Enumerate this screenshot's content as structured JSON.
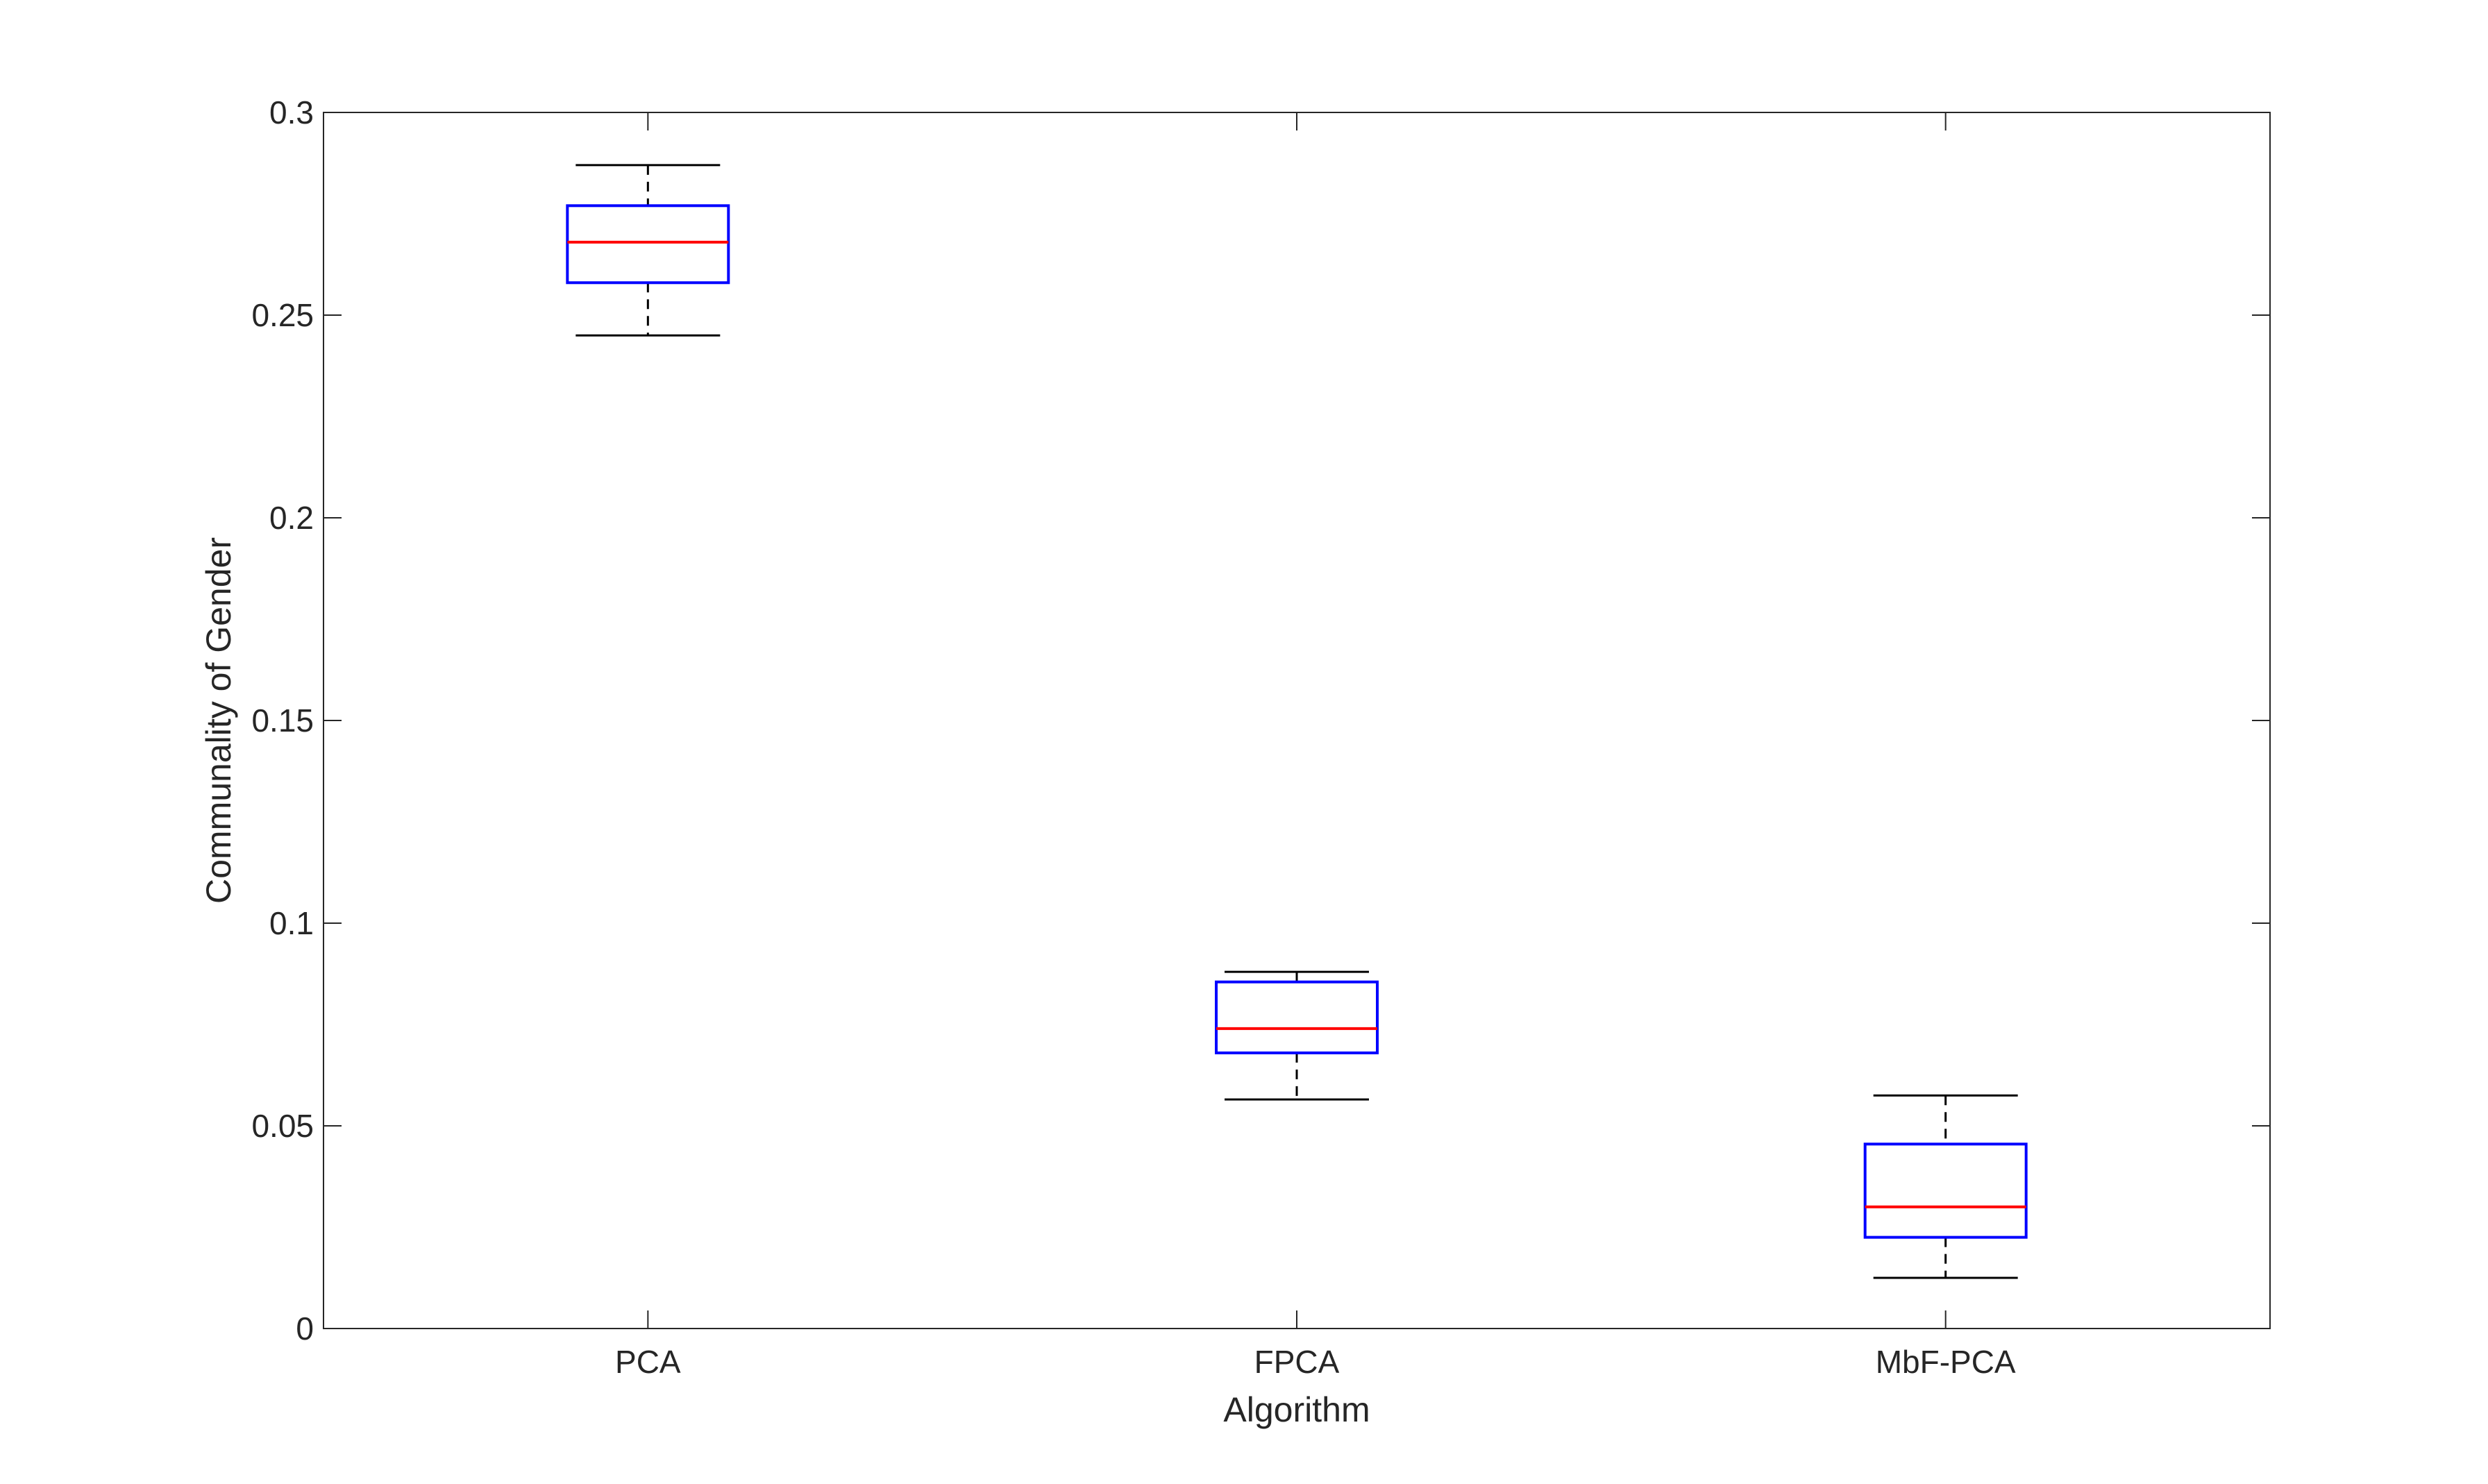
{
  "chart_data": {
    "type": "box",
    "title": "",
    "xlabel": "Algorithm",
    "ylabel": "Communality of Gender",
    "categories": [
      "PCA",
      "FPCA",
      "MbF-PCA"
    ],
    "ylim": [
      0,
      0.3
    ],
    "yticks": [
      0,
      0.05,
      0.1,
      0.15,
      0.2,
      0.25,
      0.3
    ],
    "ytick_labels": [
      "0",
      "0.05",
      "0.1",
      "0.15",
      "0.2",
      "0.25",
      "0.3"
    ],
    "grid": false,
    "legend": "none",
    "boxes": [
      {
        "name": "PCA",
        "min": 0.245,
        "q1": 0.258,
        "median": 0.268,
        "q3": 0.277,
        "max": 0.287
      },
      {
        "name": "FPCA",
        "min": 0.0565,
        "q1": 0.068,
        "median": 0.074,
        "q3": 0.0855,
        "max": 0.088
      },
      {
        "name": "MbF-PCA",
        "min": 0.0125,
        "q1": 0.0225,
        "median": 0.03,
        "q3": 0.0455,
        "max": 0.0575
      }
    ],
    "colors": {
      "box": "#0000ff",
      "median": "#ff0000",
      "whisker": "#000000",
      "axis": "#262626"
    }
  }
}
